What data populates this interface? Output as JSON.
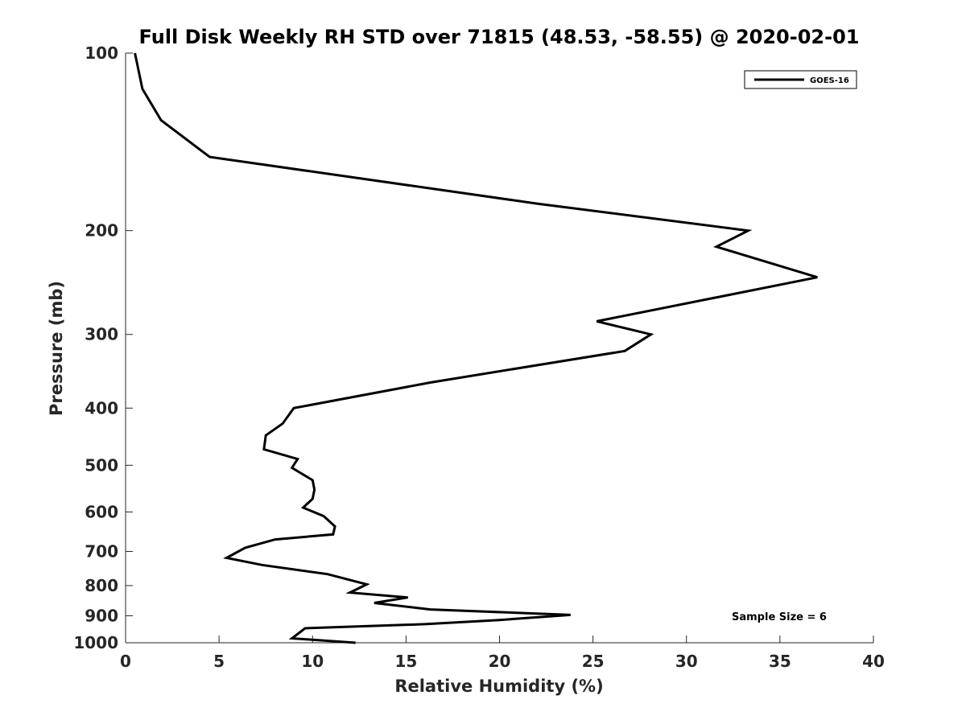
{
  "chart_data": {
    "type": "line",
    "title": "Full Disk Weekly RH STD over 71815 (48.53, -58.55) @ 2020-02-01",
    "xlabel": "Relative Humidity (%)",
    "ylabel": "Pressure (mb)",
    "xlim": [
      0,
      40
    ],
    "ylim": [
      100,
      1000
    ],
    "y_scale": "log",
    "y_reversed": true,
    "x_ticks": [
      0,
      5,
      10,
      15,
      20,
      25,
      30,
      35,
      40
    ],
    "y_ticks": [
      100,
      200,
      300,
      400,
      500,
      600,
      700,
      800,
      900,
      1000
    ],
    "grid": false,
    "legend_position": "top-right",
    "annotation": "Sample Size = 6",
    "series": [
      {
        "name": "GOES-16",
        "color": "#000000",
        "points": [
          [
            0.5,
            100
          ],
          [
            0.9,
            115
          ],
          [
            1.9,
            130
          ],
          [
            4.5,
            150
          ],
          [
            22.0,
            180
          ],
          [
            33.3,
            200
          ],
          [
            31.6,
            213
          ],
          [
            37.0,
            240
          ],
          [
            25.2,
            285
          ],
          [
            28.1,
            300
          ],
          [
            26.7,
            320
          ],
          [
            16.3,
            362
          ],
          [
            9.0,
            400
          ],
          [
            8.4,
            425
          ],
          [
            7.5,
            445
          ],
          [
            7.4,
            470
          ],
          [
            9.2,
            488
          ],
          [
            8.9,
            505
          ],
          [
            10.0,
            530
          ],
          [
            10.1,
            550
          ],
          [
            10.0,
            570
          ],
          [
            9.5,
            590
          ],
          [
            10.6,
            610
          ],
          [
            11.2,
            635
          ],
          [
            11.1,
            655
          ],
          [
            8.0,
            668
          ],
          [
            6.4,
            690
          ],
          [
            5.4,
            718
          ],
          [
            7.3,
            738
          ],
          [
            10.8,
            765
          ],
          [
            12.9,
            796
          ],
          [
            12.0,
            822
          ],
          [
            15.1,
            838
          ],
          [
            13.3,
            856
          ],
          [
            16.3,
            878
          ],
          [
            23.8,
            897
          ],
          [
            20.0,
            915
          ],
          [
            16.0,
            930
          ],
          [
            9.6,
            945
          ],
          [
            8.9,
            983
          ],
          [
            12.3,
            1000
          ]
        ]
      }
    ]
  }
}
